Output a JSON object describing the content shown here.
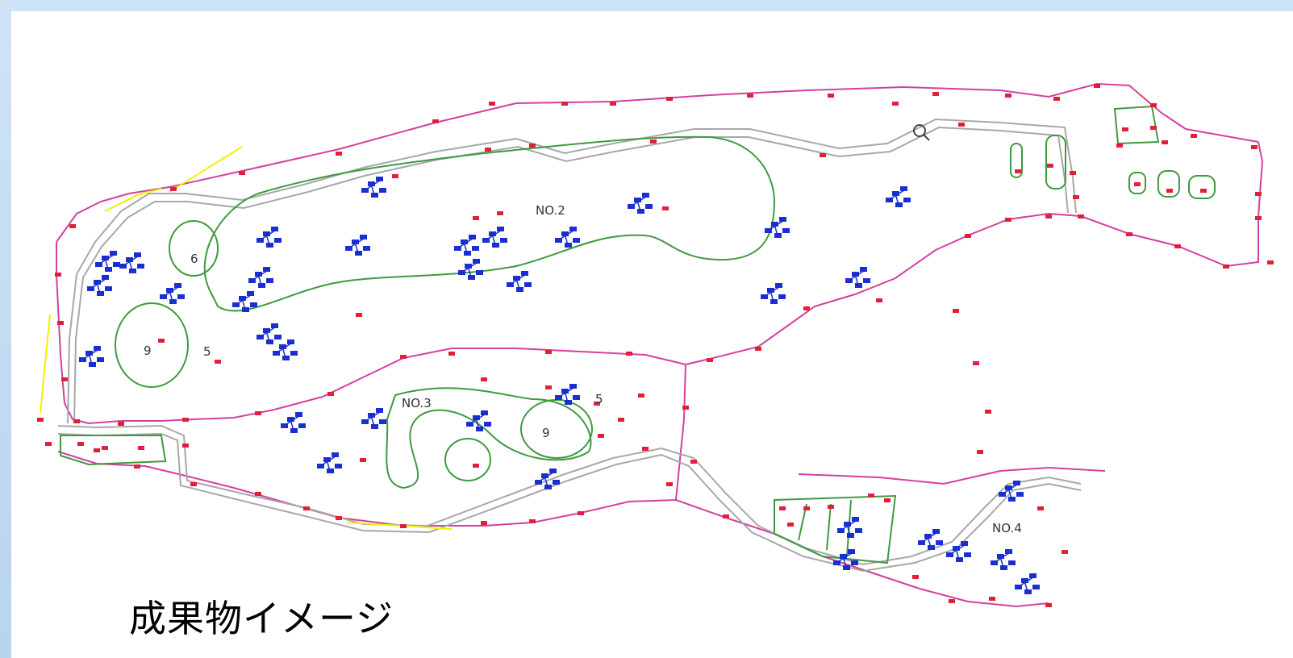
{
  "caption": "成果物イメージ",
  "map": {
    "area_labels": {
      "no2": "NO.2",
      "no3": "NO.3",
      "no4": "NO.4"
    },
    "pond_labels": {
      "west_large": "9",
      "west_small": "6",
      "west_tiny": "5",
      "no3_pond": "9",
      "no3_small": "5"
    }
  },
  "colors": {
    "boundary": "#d4409e",
    "road": "#a8a8a8",
    "contour": "#3f9a3f",
    "marker": "#e0203a",
    "tree": "#1a2fd0",
    "annotation": "#f3f000",
    "frame": "#c3dbf2"
  },
  "icons": {
    "tree_cluster": "tree-cluster-icon",
    "survey_marker": "survey-marker-icon"
  }
}
